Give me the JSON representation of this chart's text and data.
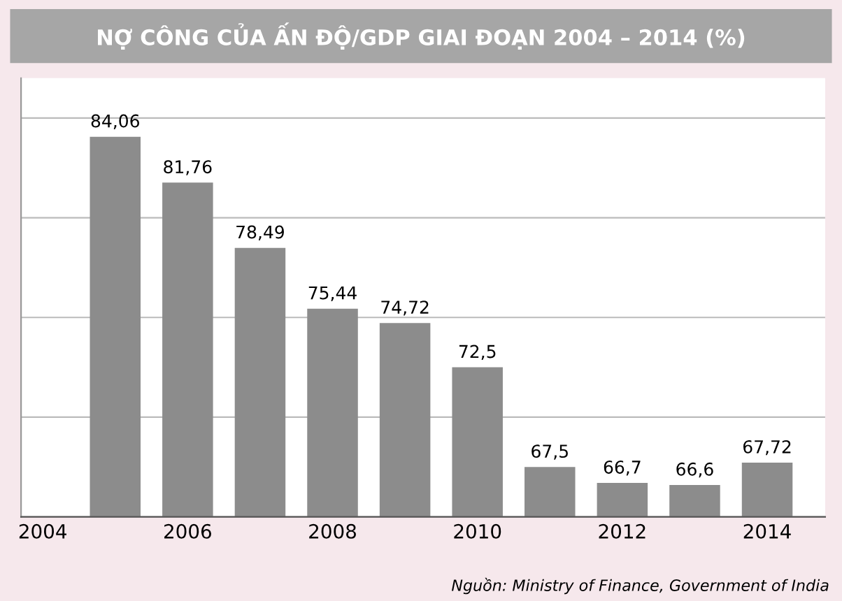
{
  "chart_data": {
    "type": "bar",
    "title": "NỢ CÔNG CỦA ẤN ĐỘ/GDP GIAI ĐOẠN 2004 – 2014 (%)",
    "x": [
      2005,
      2006,
      2007,
      2008,
      2009,
      2010,
      2011,
      2012,
      2013,
      2014
    ],
    "values": [
      84.06,
      81.76,
      78.49,
      75.44,
      74.72,
      72.5,
      67.5,
      66.7,
      66.6,
      67.72
    ],
    "value_labels": [
      "84,06",
      "81,76",
      "78,49",
      "75,44",
      "74,72",
      "72,5",
      "67,5",
      "66,7",
      "66,6",
      "67,72"
    ],
    "color": "#8c8c8c",
    "xlim": [
      2003.7,
      2014.8
    ],
    "xticks": [
      2004,
      2006,
      2008,
      2010,
      2012,
      2014
    ],
    "ylim": [
      65,
      87
    ],
    "yticks": [
      {
        "value": 65,
        "label": null
      },
      {
        "value": 70,
        "label": null
      },
      {
        "value": 75,
        "label": null
      },
      {
        "value": 80,
        "label": null
      },
      {
        "value": 85,
        "label": null
      }
    ],
    "tick_labels": "x",
    "grid": "y",
    "legend": false,
    "annotations": [
      "Nguồn: Ministry of Finance, Government of India"
    ]
  }
}
